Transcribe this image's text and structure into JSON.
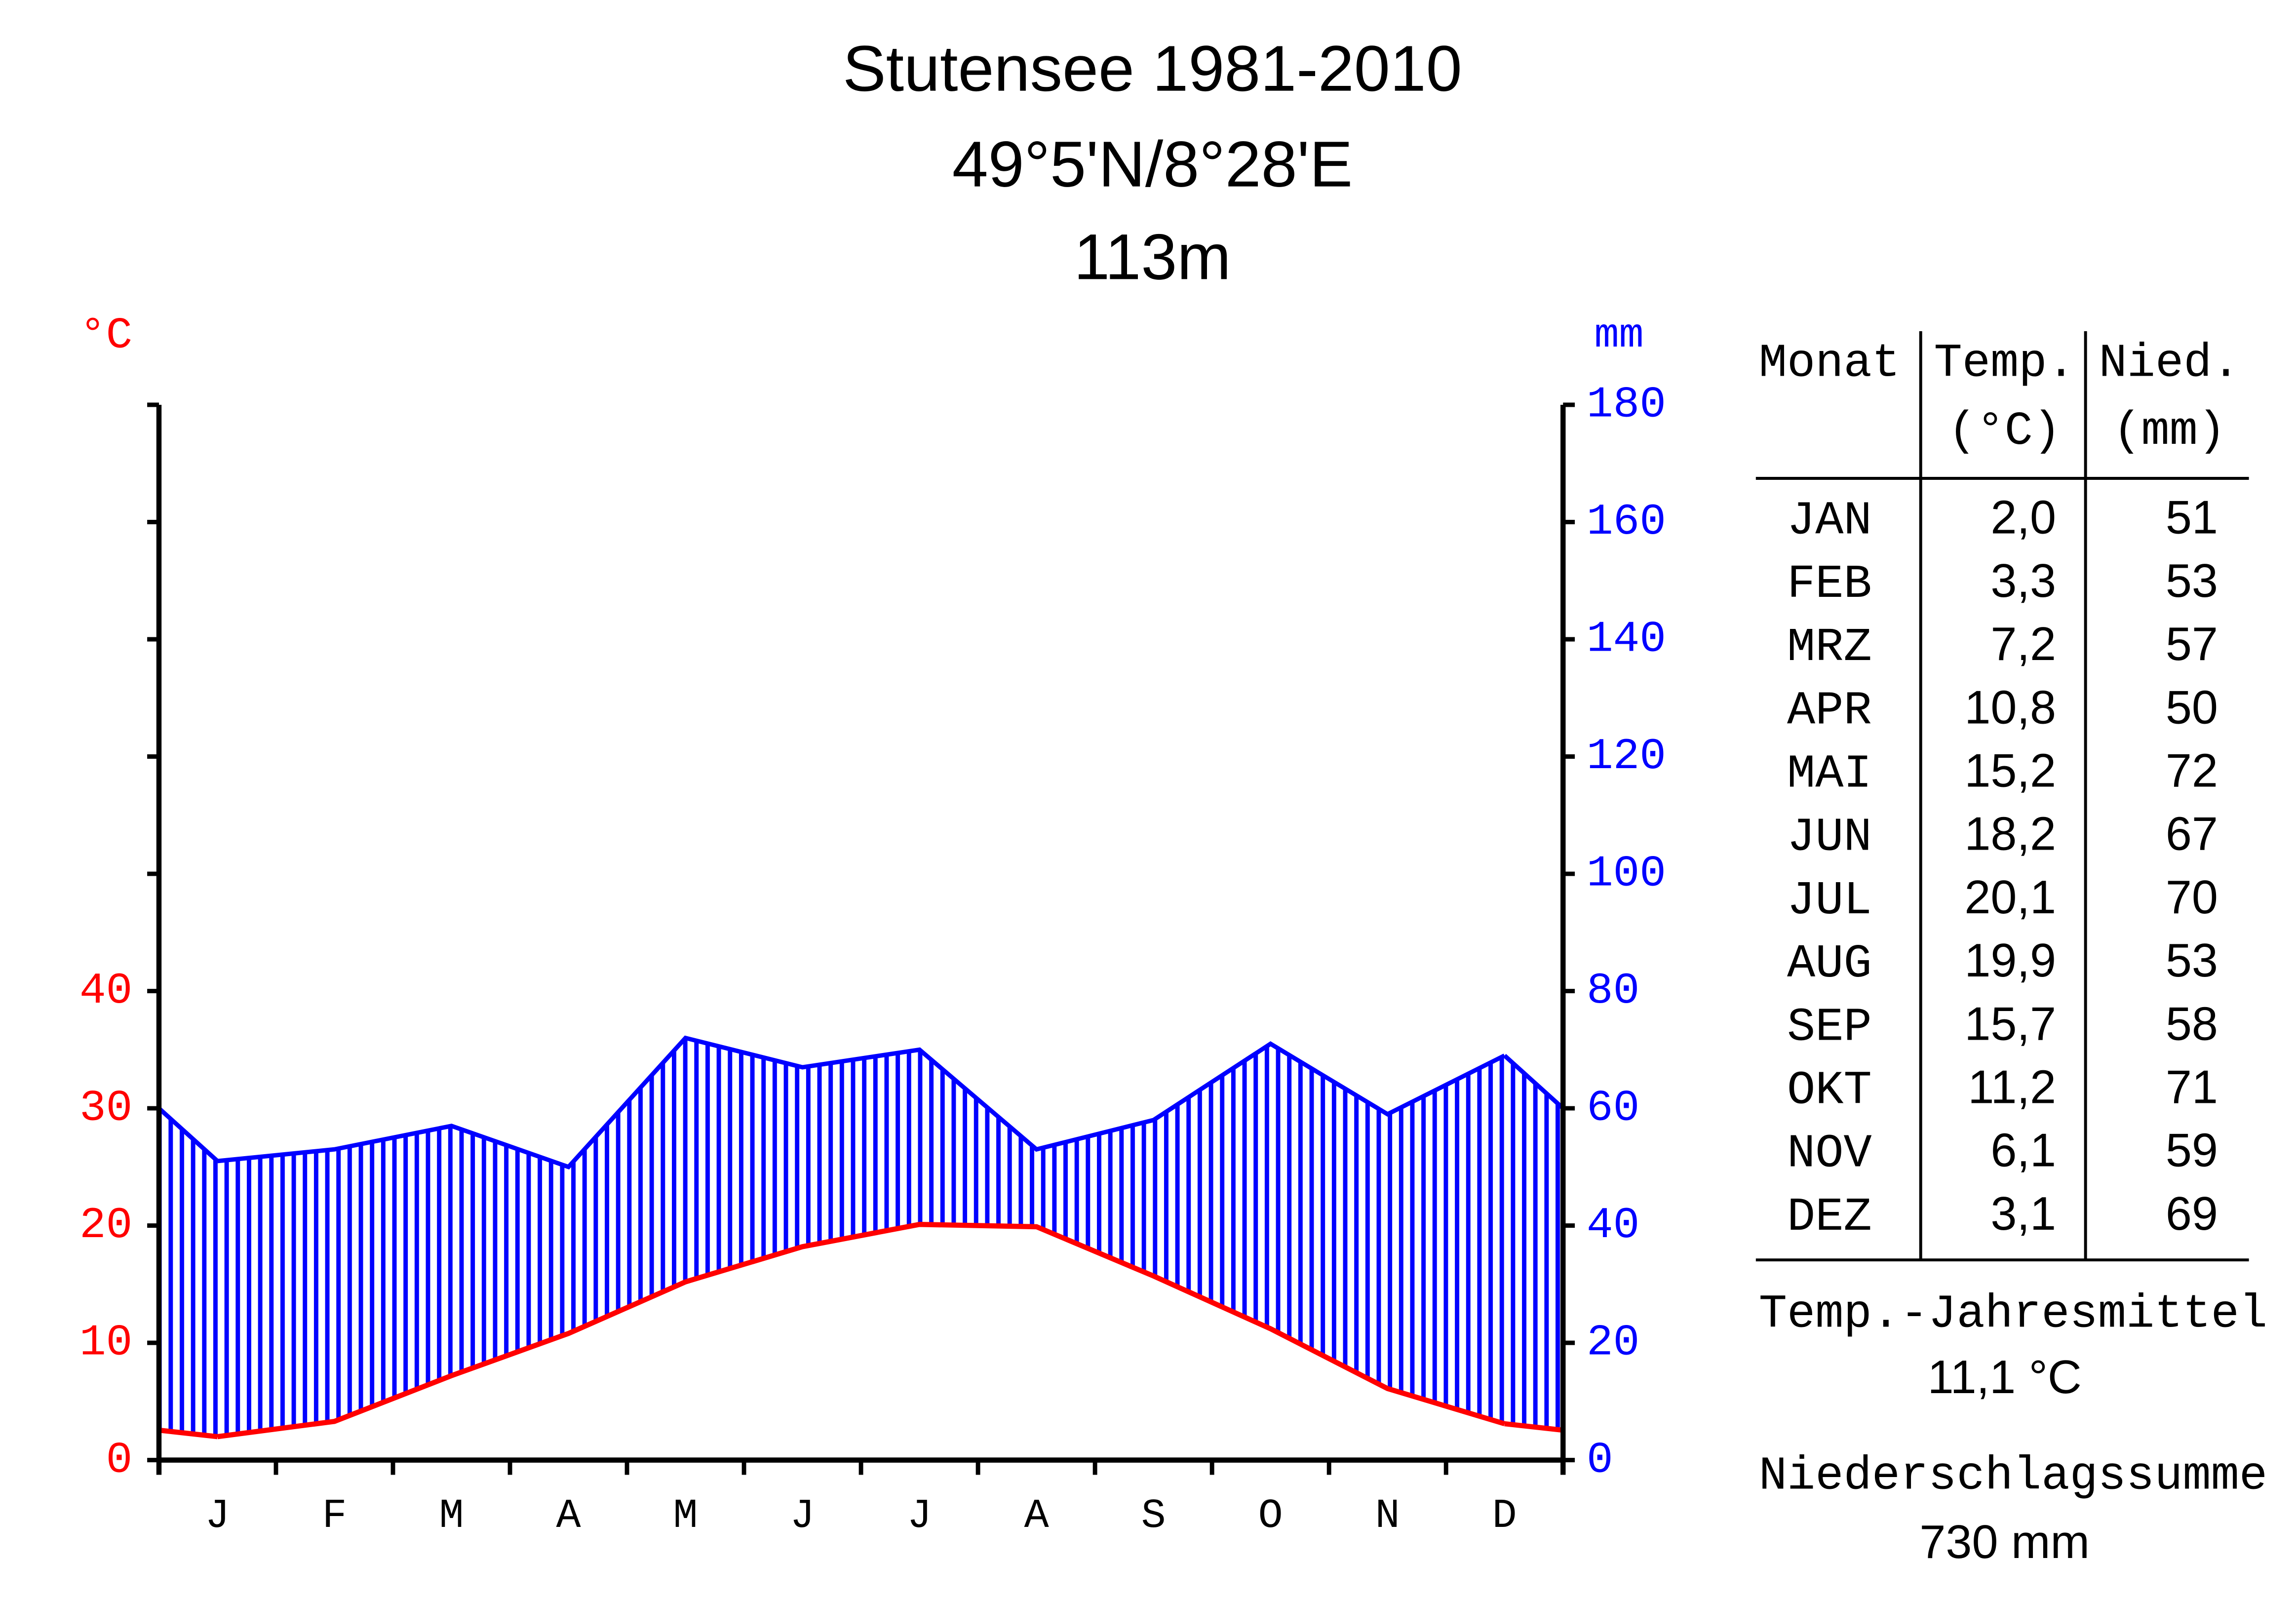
{
  "chart_data": {
    "type": "climate",
    "title": "Stutensee 1981-2010",
    "subtitle": "49°5'N/8°28'E",
    "elevation": "113m",
    "ylabel": "°C",
    "y2label": "mm",
    "categories": [
      "J",
      "F",
      "M",
      "A",
      "M",
      "J",
      "J",
      "A",
      "S",
      "O",
      "N",
      "D"
    ],
    "series": [
      {
        "name": "Temp.",
        "color": "#ff0000",
        "values": [
          2.0,
          3.3,
          7.2,
          10.8,
          15.2,
          18.2,
          20.1,
          19.9,
          15.7,
          11.2,
          6.1,
          3.1
        ],
        "value_labels": [
          "2,0",
          "3,3",
          "7,2",
          "10,8",
          "15,2",
          "18,2",
          "20,1",
          "19,9",
          "15,7",
          "11,2",
          "6,1",
          "3,1"
        ]
      },
      {
        "name": "Nied.",
        "color": "#0000ff",
        "axis": "y2",
        "values": [
          51,
          53,
          57,
          50,
          72,
          67,
          70,
          53,
          58,
          71,
          59,
          69
        ]
      }
    ],
    "ylim": [
      0,
      90
    ],
    "yticks": [
      0,
      10,
      20,
      30,
      40
    ],
    "yticks_unlabeled": [
      50,
      60,
      70,
      80,
      90
    ],
    "y2lim": [
      0,
      180
    ],
    "y2ticks": [
      0,
      20,
      40,
      60,
      80,
      100,
      120,
      140,
      160,
      180
    ]
  },
  "table": {
    "month_header": "Monat",
    "temp_unit": "(°C)",
    "precip_unit": "(mm)",
    "months": [
      "JAN",
      "FEB",
      "MRZ",
      "APR",
      "MAI",
      "JUN",
      "JUL",
      "AUG",
      "SEP",
      "OKT",
      "NOV",
      "DEZ"
    ],
    "annual_mean_label": "Temp.-Jahresmittel",
    "annual_mean": "11,1 °C",
    "total_label": "Niederschlagssumme",
    "total": "730 mm"
  }
}
